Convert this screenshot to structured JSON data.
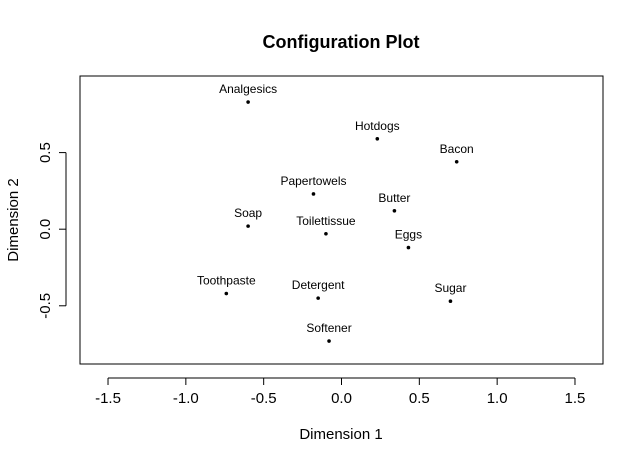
{
  "chart_data": {
    "type": "scatter",
    "title": "Configuration Plot",
    "xlabel": "Dimension 1",
    "ylabel": "Dimension 2",
    "xlim": [
      -1.68,
      1.68
    ],
    "ylim": [
      -0.88,
      1.0
    ],
    "x_ticks": [
      -1.5,
      -1.0,
      -0.5,
      0.0,
      0.5,
      1.0,
      1.5
    ],
    "x_tick_labels": [
      "-1.5",
      "-1.0",
      "-0.5",
      "0.0",
      "0.5",
      "1.0",
      "1.5"
    ],
    "y_ticks": [
      -0.5,
      0.0,
      0.5
    ],
    "y_tick_labels": [
      "-0.5",
      "0.0",
      "0.5"
    ],
    "grid": false,
    "legend": "none",
    "point_color": "#000000",
    "points": [
      {
        "label": "Analgesics",
        "x": -0.6,
        "y": 0.83
      },
      {
        "label": "Hotdogs",
        "x": 0.23,
        "y": 0.59
      },
      {
        "label": "Bacon",
        "x": 0.74,
        "y": 0.44
      },
      {
        "label": "Papertowels",
        "x": -0.18,
        "y": 0.23
      },
      {
        "label": "Butter",
        "x": 0.34,
        "y": 0.12
      },
      {
        "label": "Soap",
        "x": -0.6,
        "y": 0.02
      },
      {
        "label": "Toilettissue",
        "x": -0.1,
        "y": -0.03
      },
      {
        "label": "Eggs",
        "x": 0.43,
        "y": -0.12
      },
      {
        "label": "Toothpaste",
        "x": -0.74,
        "y": -0.42
      },
      {
        "label": "Detergent",
        "x": -0.15,
        "y": -0.45
      },
      {
        "label": "Sugar",
        "x": 0.7,
        "y": -0.47
      },
      {
        "label": "Softener",
        "x": -0.08,
        "y": -0.73
      }
    ]
  }
}
